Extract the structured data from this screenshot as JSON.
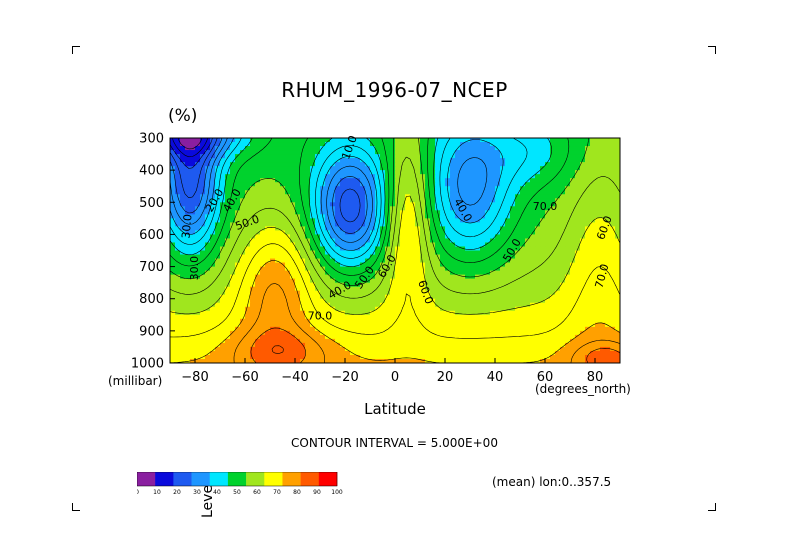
{
  "chart_data": {
    "type": "contour",
    "title": "RHUM_1996-07_NCEP",
    "unit_label": "(%)",
    "xlabel": "Latitude",
    "x_unit": "(degrees_north)",
    "ylabel": "Level",
    "y_unit": "(millibar)",
    "xlim": [
      -90,
      90
    ],
    "ylim": [
      1000,
      300
    ],
    "x_ticks": [
      -80,
      -60,
      -40,
      -20,
      0,
      20,
      40,
      60,
      80
    ],
    "y_ticks": [
      300,
      400,
      500,
      600,
      700,
      800,
      900,
      1000
    ],
    "contour_interval_text": "CONTOUR INTERVAL = 5.000E+00",
    "footer_text": "(mean) lon:0..357.5",
    "colorbar_labels": [
      "0",
      "10",
      "20",
      "30",
      "40",
      "50",
      "60",
      "70",
      "80",
      "90",
      "100"
    ],
    "colorbar_colors": [
      "#8a1fa0",
      "#0a0adc",
      "#1e5af0",
      "#1e96ff",
      "#00e6ff",
      "#00d22d",
      "#a0e61e",
      "#ffff00",
      "#ffa000",
      "#ff5a00",
      "#ff0000"
    ],
    "contour_labels": [
      "10.0",
      "40.0",
      "50.0",
      "60.0",
      "70.0",
      "30.0",
      "30.0",
      "20.0",
      "40.0",
      "50.0",
      "40.0",
      "60.0",
      "50.0",
      "70.0",
      "60.0",
      "70.0"
    ],
    "grid": false
  }
}
